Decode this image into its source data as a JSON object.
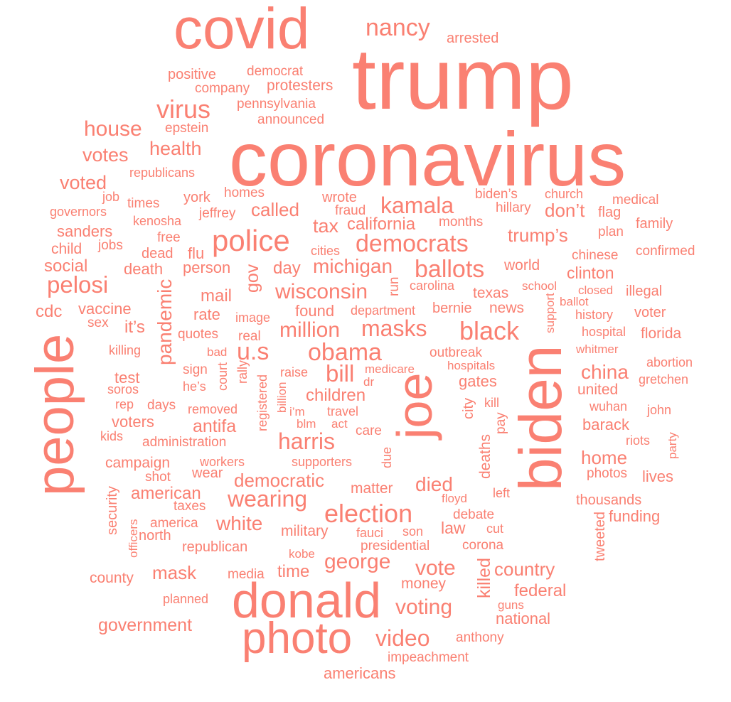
{
  "word_color": "#FA8072",
  "background": "#FFFFFF",
  "words": [
    {
      "text": "trump"
    },
    {
      "text": "coronavirus"
    },
    {
      "text": "covid"
    },
    {
      "text": "biden"
    },
    {
      "text": "joe"
    },
    {
      "text": "people"
    },
    {
      "text": "donald"
    },
    {
      "text": "photo"
    },
    {
      "text": "nancy"
    },
    {
      "text": "arrested"
    },
    {
      "text": "positive"
    },
    {
      "text": "democrat"
    },
    {
      "text": "company"
    },
    {
      "text": "protesters"
    },
    {
      "text": "virus"
    },
    {
      "text": "pennsylvania"
    },
    {
      "text": "announced"
    },
    {
      "text": "house"
    },
    {
      "text": "epstein"
    },
    {
      "text": "health"
    },
    {
      "text": "votes"
    },
    {
      "text": "republicans"
    },
    {
      "text": "voted"
    },
    {
      "text": "job"
    },
    {
      "text": "times"
    },
    {
      "text": "york"
    },
    {
      "text": "homes"
    },
    {
      "text": "wrote"
    },
    {
      "text": "biden’s"
    },
    {
      "text": "church"
    },
    {
      "text": "medical"
    },
    {
      "text": "governors"
    },
    {
      "text": "kenosha"
    },
    {
      "text": "jeffrey"
    },
    {
      "text": "called"
    },
    {
      "text": "fraud"
    },
    {
      "text": "kamala"
    },
    {
      "text": "hillary"
    },
    {
      "text": "don’t"
    },
    {
      "text": "flag"
    },
    {
      "text": "sanders"
    },
    {
      "text": "free"
    },
    {
      "text": "police"
    },
    {
      "text": "tax"
    },
    {
      "text": "california"
    },
    {
      "text": "months"
    },
    {
      "text": "trump’s"
    },
    {
      "text": "plan"
    },
    {
      "text": "family"
    },
    {
      "text": "child"
    },
    {
      "text": "jobs"
    },
    {
      "text": "dead"
    },
    {
      "text": "flu"
    },
    {
      "text": "cities"
    },
    {
      "text": "democrats"
    },
    {
      "text": "confirmed"
    },
    {
      "text": "chinese"
    },
    {
      "text": "social"
    },
    {
      "text": "death"
    },
    {
      "text": "person"
    },
    {
      "text": "gov"
    },
    {
      "text": "day"
    },
    {
      "text": "michigan"
    },
    {
      "text": "ballots"
    },
    {
      "text": "world"
    },
    {
      "text": "clinton"
    },
    {
      "text": "pelosi"
    },
    {
      "text": "pandemic"
    },
    {
      "text": "mail"
    },
    {
      "text": "wisconsin"
    },
    {
      "text": "run"
    },
    {
      "text": "carolina"
    },
    {
      "text": "texas"
    },
    {
      "text": "school"
    },
    {
      "text": "closed"
    },
    {
      "text": "illegal"
    },
    {
      "text": "cdc"
    },
    {
      "text": "vaccine"
    },
    {
      "text": "rate"
    },
    {
      "text": "image"
    },
    {
      "text": "found"
    },
    {
      "text": "department"
    },
    {
      "text": "bernie"
    },
    {
      "text": "news"
    },
    {
      "text": "ballot"
    },
    {
      "text": "support"
    },
    {
      "text": "history"
    },
    {
      "text": "voter"
    },
    {
      "text": "sex"
    },
    {
      "text": "it’s"
    },
    {
      "text": "quotes"
    },
    {
      "text": "real"
    },
    {
      "text": "million"
    },
    {
      "text": "masks"
    },
    {
      "text": "black"
    },
    {
      "text": "hospital"
    },
    {
      "text": "florida"
    },
    {
      "text": "killing"
    },
    {
      "text": "u.s"
    },
    {
      "text": "bad"
    },
    {
      "text": "obama"
    },
    {
      "text": "outbreak"
    },
    {
      "text": "whitmer"
    },
    {
      "text": "abortion"
    },
    {
      "text": "test"
    },
    {
      "text": "sign"
    },
    {
      "text": "court"
    },
    {
      "text": "rally"
    },
    {
      "text": "raise"
    },
    {
      "text": "bill"
    },
    {
      "text": "medicare"
    },
    {
      "text": "hospitals"
    },
    {
      "text": "china"
    },
    {
      "text": "gretchen"
    },
    {
      "text": "soros"
    },
    {
      "text": "he’s"
    },
    {
      "text": "dr"
    },
    {
      "text": "united"
    },
    {
      "text": "registered"
    },
    {
      "text": "billion"
    },
    {
      "text": "children"
    },
    {
      "text": "gates"
    },
    {
      "text": "rep"
    },
    {
      "text": "days"
    },
    {
      "text": "removed"
    },
    {
      "text": "i’m"
    },
    {
      "text": "travel"
    },
    {
      "text": "city"
    },
    {
      "text": "kill"
    },
    {
      "text": "wuhan"
    },
    {
      "text": "john"
    },
    {
      "text": "voters"
    },
    {
      "text": "antifa"
    },
    {
      "text": "blm"
    },
    {
      "text": "act"
    },
    {
      "text": "barack"
    },
    {
      "text": "kids"
    },
    {
      "text": "care"
    },
    {
      "text": "pay"
    },
    {
      "text": "riots"
    },
    {
      "text": "administration"
    },
    {
      "text": "harris"
    },
    {
      "text": "party"
    },
    {
      "text": "deaths"
    },
    {
      "text": "due"
    },
    {
      "text": "campaign"
    },
    {
      "text": "workers"
    },
    {
      "text": "supporters"
    },
    {
      "text": "home"
    },
    {
      "text": "shot"
    },
    {
      "text": "wear"
    },
    {
      "text": "photos"
    },
    {
      "text": "lives"
    },
    {
      "text": "democratic"
    },
    {
      "text": "matter"
    },
    {
      "text": "died"
    },
    {
      "text": "left"
    },
    {
      "text": "american"
    },
    {
      "text": "security"
    },
    {
      "text": "floyd"
    },
    {
      "text": "taxes"
    },
    {
      "text": "wearing"
    },
    {
      "text": "thousands"
    },
    {
      "text": "debate"
    },
    {
      "text": "election"
    },
    {
      "text": "funding"
    },
    {
      "text": "america"
    },
    {
      "text": "officers"
    },
    {
      "text": "north"
    },
    {
      "text": "white"
    },
    {
      "text": "military"
    },
    {
      "text": "son"
    },
    {
      "text": "law"
    },
    {
      "text": "cut"
    },
    {
      "text": "tweeted"
    },
    {
      "text": "republican"
    },
    {
      "text": "fauci"
    },
    {
      "text": "presidential"
    },
    {
      "text": "corona"
    },
    {
      "text": "kobe"
    },
    {
      "text": "george"
    },
    {
      "text": "vote"
    },
    {
      "text": "country"
    },
    {
      "text": "county"
    },
    {
      "text": "mask"
    },
    {
      "text": "media"
    },
    {
      "text": "time"
    },
    {
      "text": "money"
    },
    {
      "text": "killed"
    },
    {
      "text": "federal"
    },
    {
      "text": "planned"
    },
    {
      "text": "voting"
    },
    {
      "text": "guns"
    },
    {
      "text": "national"
    },
    {
      "text": "government"
    },
    {
      "text": "video"
    },
    {
      "text": "anthony"
    },
    {
      "text": "impeachment"
    },
    {
      "text": "americans"
    }
  ]
}
